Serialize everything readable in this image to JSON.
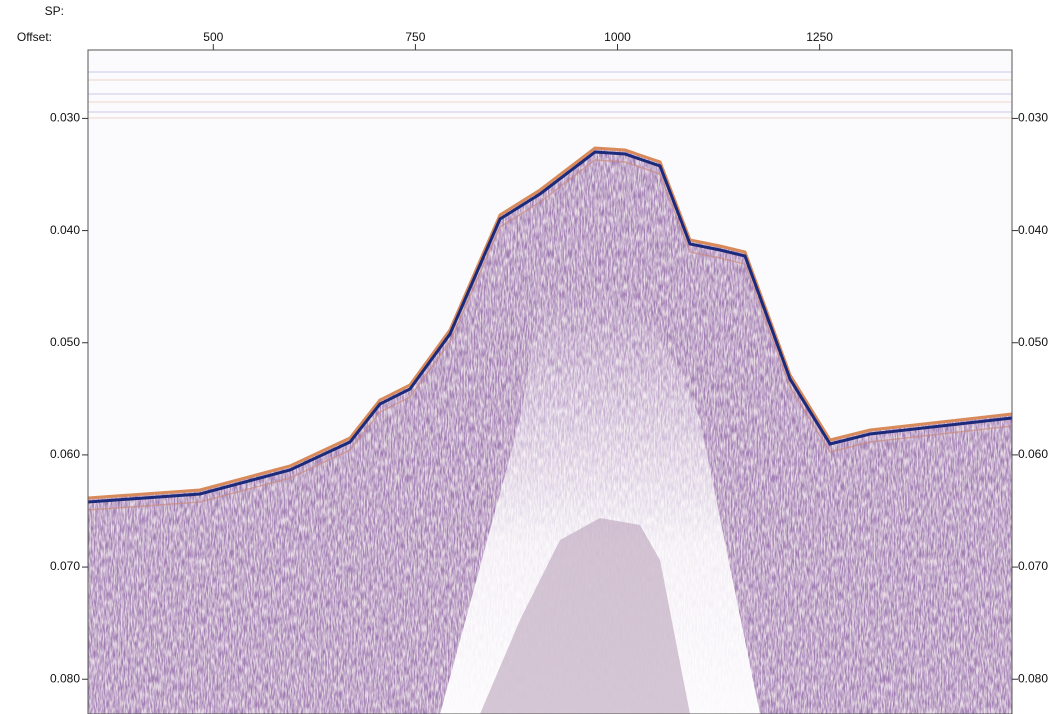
{
  "chart_data": {
    "type": "seismic",
    "sp_label": "SP:",
    "x_label": "Offset:",
    "xlim": [
      345,
      1488
    ],
    "xticks": [
      500,
      750,
      1000,
      1250
    ],
    "ylim": [
      0.0239,
      0.0831
    ],
    "y_inverted": true,
    "yticks": [
      {
        "value": 0.03,
        "label": "0.030"
      },
      {
        "value": 0.04,
        "label": "0.040"
      },
      {
        "value": 0.05,
        "label": "0.050"
      },
      {
        "value": 0.06,
        "label": "0.060"
      },
      {
        "value": 0.07,
        "label": "0.070"
      },
      {
        "value": 0.08,
        "label": "0.080"
      }
    ]
  }
}
